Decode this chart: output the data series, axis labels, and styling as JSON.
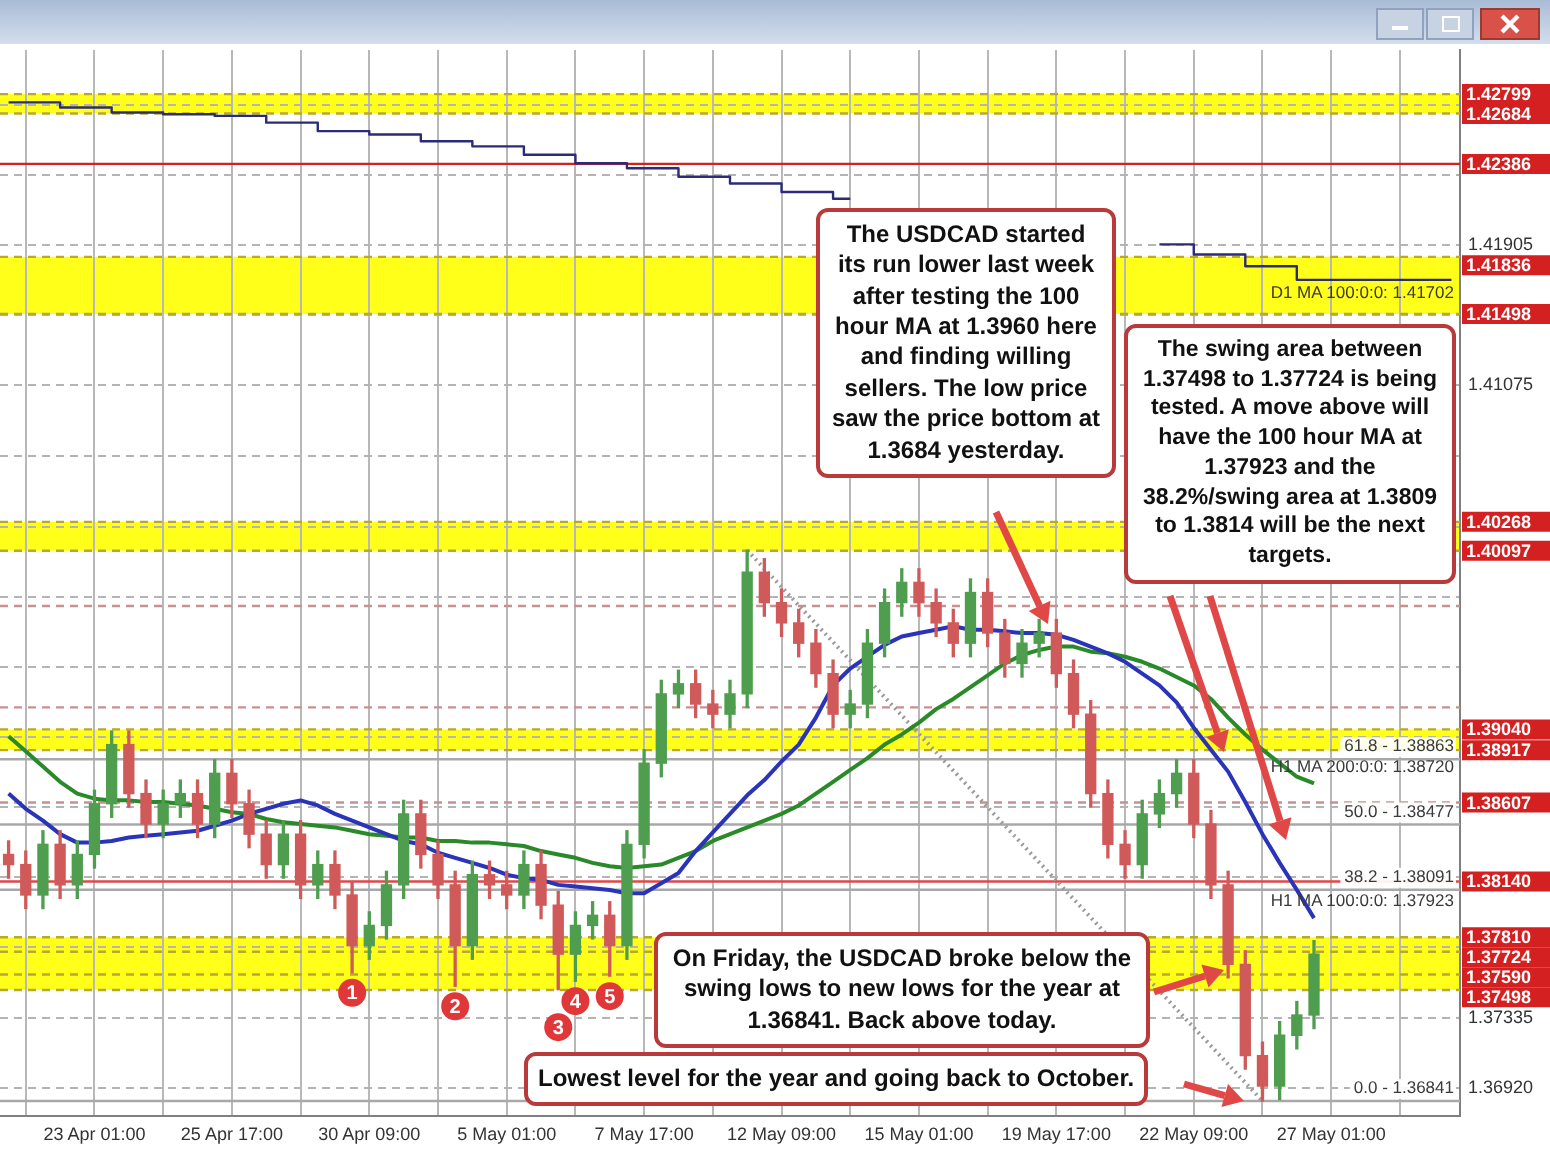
{
  "chart_data": {
    "type": "candlestick",
    "categories": [
      null,
      null,
      null,
      null,
      null,
      "23 Apr 01:00",
      null,
      null,
      null,
      null,
      null,
      null,
      null,
      "25 Apr 17:00",
      null,
      null,
      null,
      null,
      null,
      null,
      null,
      "30 Apr 09:00",
      null,
      null,
      null,
      null,
      null,
      null,
      null,
      "5 May 01:00",
      null,
      null,
      null,
      null,
      null,
      null,
      null,
      "7 May 17:00",
      null,
      null,
      null,
      null,
      null,
      null,
      null,
      "12 May 09:00",
      null,
      null,
      null,
      null,
      null,
      null,
      null,
      "15 May 01:00",
      null,
      null,
      null,
      null,
      null,
      null,
      null,
      "19 May 17:00",
      null,
      null,
      null,
      null,
      null,
      null,
      null,
      "22 May 09:00",
      null,
      null,
      null,
      null,
      null,
      null,
      null,
      "27 May 01:00",
      null,
      null,
      null,
      null,
      null,
      null,
      null
    ],
    "ohlc": [
      [
        1.383,
        1.3838,
        1.3816,
        1.3824
      ],
      [
        1.3824,
        1.3832,
        1.3798,
        1.3806
      ],
      [
        1.3806,
        1.3844,
        1.3798,
        1.3836
      ],
      [
        1.3836,
        1.3844,
        1.3804,
        1.3812
      ],
      [
        1.3812,
        1.3838,
        1.3804,
        1.383
      ],
      [
        1.383,
        1.3868,
        1.3822,
        1.386
      ],
      [
        1.386,
        1.3903,
        1.3852,
        1.3895
      ],
      [
        1.3895,
        1.3903,
        1.3858,
        1.3866
      ],
      [
        1.3866,
        1.3874,
        1.384,
        1.3848
      ],
      [
        1.3848,
        1.3868,
        1.384,
        1.386
      ],
      [
        1.386,
        1.3874,
        1.3852,
        1.3866
      ],
      [
        1.3866,
        1.3874,
        1.384,
        1.3848
      ],
      [
        1.3848,
        1.3886,
        1.384,
        1.3878
      ],
      [
        1.3878,
        1.3886,
        1.3852,
        1.386
      ],
      [
        1.386,
        1.3868,
        1.3834,
        1.3842
      ],
      [
        1.3842,
        1.385,
        1.3816,
        1.3824
      ],
      [
        1.3824,
        1.385,
        1.3816,
        1.3842
      ],
      [
        1.3842,
        1.385,
        1.3804,
        1.3812
      ],
      [
        1.3812,
        1.3832,
        1.3804,
        1.3824
      ],
      [
        1.3824,
        1.3832,
        1.3798,
        1.3806
      ],
      [
        1.3806,
        1.3814,
        1.376,
        1.3776
      ],
      [
        1.3776,
        1.3796,
        1.3768,
        1.3788
      ],
      [
        1.3788,
        1.382,
        1.378,
        1.3812
      ],
      [
        1.3812,
        1.3862,
        1.3804,
        1.3854
      ],
      [
        1.3854,
        1.3862,
        1.3822,
        1.383
      ],
      [
        1.383,
        1.3838,
        1.3804,
        1.3812
      ],
      [
        1.3812,
        1.382,
        1.3752,
        1.3776
      ],
      [
        1.3776,
        1.3826,
        1.3768,
        1.3818
      ],
      [
        1.3818,
        1.3826,
        1.3804,
        1.3812
      ],
      [
        1.3812,
        1.382,
        1.3798,
        1.3806
      ],
      [
        1.3806,
        1.3832,
        1.3798,
        1.3824
      ],
      [
        1.3824,
        1.3832,
        1.3792,
        1.38
      ],
      [
        1.38,
        1.3808,
        1.375,
        1.3771
      ],
      [
        1.3771,
        1.3796,
        1.3755,
        1.3788
      ],
      [
        1.3788,
        1.3802,
        1.378,
        1.3794
      ],
      [
        1.3794,
        1.3802,
        1.3758,
        1.3776
      ],
      [
        1.3776,
        1.3844,
        1.3768,
        1.3836
      ],
      [
        1.3836,
        1.3892,
        1.3828,
        1.3884
      ],
      [
        1.3884,
        1.3933,
        1.3876,
        1.3925
      ],
      [
        1.3925,
        1.3939,
        1.3917,
        1.3931
      ],
      [
        1.3931,
        1.3939,
        1.3911,
        1.3919
      ],
      [
        1.3919,
        1.3927,
        1.3905,
        1.3913
      ],
      [
        1.3913,
        1.3933,
        1.3905,
        1.3925
      ],
      [
        1.3925,
        1.401,
        1.3917,
        1.3997
      ],
      [
        1.3997,
        1.4005,
        1.3971,
        1.3979
      ],
      [
        1.3979,
        1.3987,
        1.3959,
        1.3967
      ],
      [
        1.3967,
        1.3975,
        1.3947,
        1.3955
      ],
      [
        1.3955,
        1.3963,
        1.3929,
        1.3937
      ],
      [
        1.3937,
        1.3945,
        1.3905,
        1.3913
      ],
      [
        1.3913,
        1.3927,
        1.3905,
        1.3919
      ],
      [
        1.3919,
        1.3963,
        1.3911,
        1.3955
      ],
      [
        1.3955,
        1.3987,
        1.3947,
        1.3979
      ],
      [
        1.3979,
        1.3999,
        1.3971,
        1.3991
      ],
      [
        1.3991,
        1.3999,
        1.3971,
        1.3979
      ],
      [
        1.3979,
        1.3987,
        1.3959,
        1.3967
      ],
      [
        1.3967,
        1.3975,
        1.3947,
        1.3955
      ],
      [
        1.3955,
        1.3993,
        1.3947,
        1.3985
      ],
      [
        1.3985,
        1.3993,
        1.3953,
        1.3961
      ],
      [
        1.3961,
        1.3969,
        1.3935,
        1.3943
      ],
      [
        1.3943,
        1.3963,
        1.3935,
        1.3955
      ],
      [
        1.3955,
        1.3969,
        1.3947,
        1.3961
      ],
      [
        1.3961,
        1.3969,
        1.3929,
        1.3937
      ],
      [
        1.3937,
        1.3945,
        1.3905,
        1.3913
      ],
      [
        1.3913,
        1.3921,
        1.3858,
        1.3866
      ],
      [
        1.3866,
        1.3874,
        1.3828,
        1.3836
      ],
      [
        1.3836,
        1.3844,
        1.3816,
        1.3824
      ],
      [
        1.3824,
        1.3862,
        1.3816,
        1.3854
      ],
      [
        1.3854,
        1.3874,
        1.3846,
        1.3866
      ],
      [
        1.3866,
        1.3886,
        1.3858,
        1.3878
      ],
      [
        1.3878,
        1.3886,
        1.384,
        1.3848
      ],
      [
        1.3848,
        1.3856,
        1.3804,
        1.3812
      ],
      [
        1.3812,
        1.382,
        1.3757,
        1.3765
      ],
      [
        1.3765,
        1.3773,
        1.3703,
        1.3711
      ],
      [
        1.3711,
        1.3719,
        1.36841,
        1.3693
      ],
      [
        1.3693,
        1.3731,
        1.3685,
        1.3723
      ],
      [
        1.3723,
        1.3743,
        1.3715,
        1.3735
      ],
      [
        1.3735,
        1.3779,
        1.3727,
        1.3771
      ],
      null,
      null,
      null,
      null,
      null,
      null,
      null,
      null
    ],
    "series": [
      {
        "type": "line",
        "name": "H1 MA 100:0:0: 1.37923",
        "color": "#2a34b8",
        "values": [
          1.3866,
          1.3857,
          1.385,
          1.3842,
          1.3837,
          1.3837,
          1.3838,
          1.384,
          1.3841,
          1.3842,
          1.3843,
          1.3844,
          1.3847,
          1.385,
          1.3854,
          1.3857,
          1.386,
          1.3862,
          1.3859,
          1.3854,
          1.385,
          1.3846,
          1.3842,
          1.3838,
          1.3836,
          1.3831,
          1.3828,
          1.3825,
          1.3822,
          1.3818,
          1.3816,
          1.3815,
          1.3812,
          1.3811,
          1.381,
          1.3809,
          1.3807,
          1.3807,
          1.3813,
          1.3819,
          1.3832,
          1.3843,
          1.3854,
          1.3865,
          1.3874,
          1.3885,
          1.3895,
          1.3911,
          1.393,
          1.394,
          1.3947,
          1.3954,
          1.3959,
          1.3961,
          1.3963,
          1.3965,
          1.3963,
          1.3963,
          1.3962,
          1.3961,
          1.3961,
          1.396,
          1.3957,
          1.3953,
          1.3949,
          1.3944,
          1.3937,
          1.393,
          1.392,
          1.3905,
          1.3892,
          1.3879,
          1.3861,
          1.3842,
          1.3825,
          1.3809,
          1.37923,
          null,
          null,
          null,
          null,
          null,
          null,
          null,
          null
        ]
      },
      {
        "type": "line",
        "name": "H1 MA 200:0:0: 1.38720",
        "color": "#2a8a2a",
        "values": [
          1.39,
          1.3891,
          1.3882,
          1.3873,
          1.3866,
          1.3863,
          1.3862,
          1.3862,
          1.3861,
          1.3861,
          1.386,
          1.3859,
          1.3857,
          1.3855,
          1.3854,
          1.3851,
          1.3849,
          1.3848,
          1.3847,
          1.3846,
          1.3844,
          1.3842,
          1.3841,
          1.384,
          1.384,
          1.3838,
          1.3838,
          1.3837,
          1.3837,
          1.3836,
          1.3835,
          1.3832,
          1.383,
          1.3828,
          1.3825,
          1.3823,
          1.3822,
          1.3823,
          1.3824,
          1.3828,
          1.3832,
          1.3838,
          1.3842,
          1.3846,
          1.385,
          1.3854,
          1.3859,
          1.3866,
          1.3873,
          1.388,
          1.3887,
          1.3895,
          1.3901,
          1.3908,
          1.3916,
          1.3922,
          1.3929,
          1.3936,
          1.3943,
          1.3948,
          1.3951,
          1.3953,
          1.3953,
          1.395,
          1.3949,
          1.3947,
          1.3944,
          1.394,
          1.3935,
          1.393,
          1.3922,
          1.3911,
          1.3901,
          1.3892,
          1.3884,
          1.3876,
          1.3872,
          null,
          null,
          null,
          null,
          null,
          null,
          null,
          null
        ]
      },
      {
        "type": "step",
        "name": "D1 MA 100:0:0: 1.41702",
        "color": "#2b2b78",
        "values": [
          1.4275,
          1.4275,
          1.4275,
          1.4272,
          1.4272,
          1.4272,
          1.4269,
          1.4269,
          1.4269,
          1.4268,
          1.4268,
          1.4268,
          1.4267,
          1.4267,
          1.4267,
          1.4263,
          1.4263,
          1.4263,
          1.4258,
          1.4258,
          1.4258,
          1.4256,
          1.4256,
          1.4256,
          1.4252,
          1.4252,
          1.4252,
          1.4249,
          1.4249,
          1.4249,
          1.4244,
          1.4244,
          1.4244,
          1.4239,
          1.4239,
          1.4239,
          1.4236,
          1.4236,
          1.4236,
          1.4231,
          1.4231,
          1.4231,
          1.4227,
          1.4227,
          1.4227,
          1.4222,
          1.4222,
          1.4222,
          1.4218,
          1.4218,
          null,
          null,
          null,
          null,
          null,
          null,
          null,
          null,
          null,
          null,
          null,
          null,
          null,
          null,
          null,
          null,
          null,
          1.4191,
          1.4191,
          1.4185,
          1.4185,
          1.4185,
          1.4178,
          1.4178,
          1.4178,
          1.417,
          1.417,
          1.417,
          1.417,
          1.417,
          1.417,
          1.417,
          1.417,
          1.417,
          1.417
        ]
      },
      {
        "type": "line",
        "color": "#9a9a9a",
        "line_style": "dotted",
        "values": [
          null,
          null,
          null,
          null,
          null,
          null,
          null,
          null,
          null,
          null,
          null,
          null,
          null,
          null,
          null,
          null,
          null,
          null,
          null,
          null,
          null,
          null,
          null,
          null,
          null,
          null,
          null,
          null,
          null,
          null,
          null,
          null,
          null,
          null,
          null,
          null,
          null,
          null,
          null,
          null,
          null,
          null,
          null,
          1.401,
          null,
          null,
          null,
          null,
          null,
          null,
          null,
          null,
          null,
          null,
          null,
          null,
          null,
          null,
          null,
          null,
          null,
          null,
          null,
          null,
          null,
          null,
          null,
          null,
          null,
          null,
          null,
          null,
          null,
          1.36841,
          null,
          null,
          null,
          null,
          null,
          null,
          null,
          null,
          null,
          null,
          null
        ]
      }
    ],
    "ylim": [
      1.3675,
      1.4306
    ],
    "yticks": [
      {
        "value": 1.3692,
        "label": "1.36920"
      },
      1.37335,
      {
        "value": 1.3775,
        "label": null
      },
      {
        "value": 1.38165,
        "label": null
      },
      {
        "value": 1.3858,
        "label": null
      },
      {
        "value": 1.38995,
        "label": null
      },
      {
        "value": 1.3941,
        "label": null
      },
      {
        "value": 1.39825,
        "label": null
      },
      {
        "value": 1.4024,
        "label": null
      },
      {
        "value": 1.4066,
        "label": null
      },
      1.41075,
      {
        "value": 1.4149,
        "label": null
      },
      1.41905,
      {
        "value": 1.4232,
        "label": null
      },
      {
        "value": 1.42735,
        "label": null
      }
    ],
    "grid": true,
    "bands": [
      {
        "axis": "y",
        "from": 1.42684,
        "to": 1.42799,
        "color": "#ffff1a"
      },
      {
        "axis": "y",
        "from": 1.41498,
        "to": 1.41836,
        "color": "#ffff1a"
      },
      {
        "axis": "y",
        "from": 1.40097,
        "to": 1.40268,
        "color": "#ffff1a"
      },
      {
        "axis": "y",
        "from": 1.38917,
        "to": 1.3904,
        "color": "#ffff1a"
      },
      {
        "axis": "y",
        "from": 1.37498,
        "to": 1.3781,
        "color": "#ffff1a"
      }
    ],
    "ref_lines": [
      {
        "axis": "y",
        "value": 1.42799,
        "label": "1.42799",
        "color": "#b8a830",
        "line_style": "dashed"
      },
      {
        "axis": "y",
        "value": 1.42684,
        "label": "1.42684",
        "color": "#b8a830",
        "line_style": "dashed"
      },
      {
        "axis": "y",
        "value": 1.42386,
        "label": "1.42386",
        "color": "#d42020",
        "line_style": "solid"
      },
      {
        "axis": "y",
        "value": 1.41836,
        "label": "1.41836",
        "color": "#b8a830",
        "line_style": "dashed"
      },
      {
        "axis": "y",
        "value": 1.41498,
        "label": "1.41498",
        "color": "#b8a830",
        "line_style": "dashed"
      },
      {
        "axis": "y",
        "value": 1.40268,
        "label": "1.40268",
        "color": "#b8a830",
        "line_style": "dashed"
      },
      {
        "axis": "y",
        "value": 1.40097,
        "label": "1.40097",
        "color": "#b8a830",
        "line_style": "dashed"
      },
      {
        "axis": "y",
        "value": 1.3977,
        "color": "#c89090",
        "line_style": "dashed"
      },
      {
        "axis": "y",
        "value": 1.3917,
        "color": "#c89090",
        "line_style": "dashed"
      },
      {
        "axis": "y",
        "value": 1.3904,
        "label": "1.39040",
        "color": "#b8a830",
        "line_style": "dashed"
      },
      {
        "axis": "y",
        "value": 1.38917,
        "label": "1.38917",
        "color": "#b8a830",
        "line_style": "dashed"
      },
      {
        "axis": "y",
        "value": 1.38607,
        "label": "1.38607",
        "color": "#c89090",
        "line_style": "dashed"
      },
      {
        "axis": "y",
        "value": 1.3814,
        "label": "1.38140",
        "color": "#e04848",
        "line_style": "solid"
      },
      {
        "axis": "y",
        "value": 1.3781,
        "label": "1.37810",
        "color": "#b8a830",
        "line_style": "dashed"
      },
      {
        "axis": "y",
        "value": 1.37724,
        "label": "1.37724",
        "color": "#b8a830",
        "line_style": "dashed"
      },
      {
        "axis": "y",
        "value": 1.3759,
        "label": "1.37590",
        "color": "#b8a830",
        "line_style": "dashed"
      },
      {
        "axis": "y",
        "value": 1.37498,
        "label": "1.37498",
        "color": "#b8a830",
        "line_style": "dashed"
      },
      {
        "axis": "y",
        "value": 1.38863,
        "color": "#a8a8a8",
        "line_style": "solid"
      },
      {
        "axis": "y",
        "value": 1.38477,
        "color": "#a8a8a8",
        "line_style": "solid"
      },
      {
        "axis": "y",
        "value": 1.38091,
        "color": "#a8a8a8",
        "line_style": "solid"
      },
      {
        "axis": "y",
        "value": 1.36841,
        "color": "#a8a8a8",
        "line_style": "solid"
      }
    ],
    "annotations": [
      "The USDCAD started its run lower last week after testing the 100 hour MA at 1.3960 here and finding willing sellers. The low price saw the price bottom at 1.3684 yesterday.",
      "The swing area between 1.37498 to 1.37724 is being tested. A move above will have the 100 hour MA at 1.37923 and the 38.2%/swing area at 1.3809 to 1.3814 will be the next targets.",
      "On Friday, the USDCAD broke below the swing lows to new lows for the year at 1.36841. Back above today.",
      {
        "text": "Lowest level for the year and going back to October.",
        "y": 1.36841
      },
      {
        "text": "1",
        "y": 1.376
      },
      {
        "text": "2",
        "y": 1.3752
      },
      {
        "text": "4",
        "y": 1.3755
      },
      {
        "text": "3",
        "y": 1.375
      },
      {
        "text": "5",
        "y": 1.3758
      },
      {
        "text": "61.8 - 1.38863",
        "y": 1.38863
      },
      {
        "text": "50.0 - 1.38477",
        "y": 1.38477
      },
      {
        "text": "38.2 - 1.38091",
        "y": 1.38091
      },
      {
        "text": "0.0 - 1.36841",
        "y": 1.36841
      }
    ]
  }
}
